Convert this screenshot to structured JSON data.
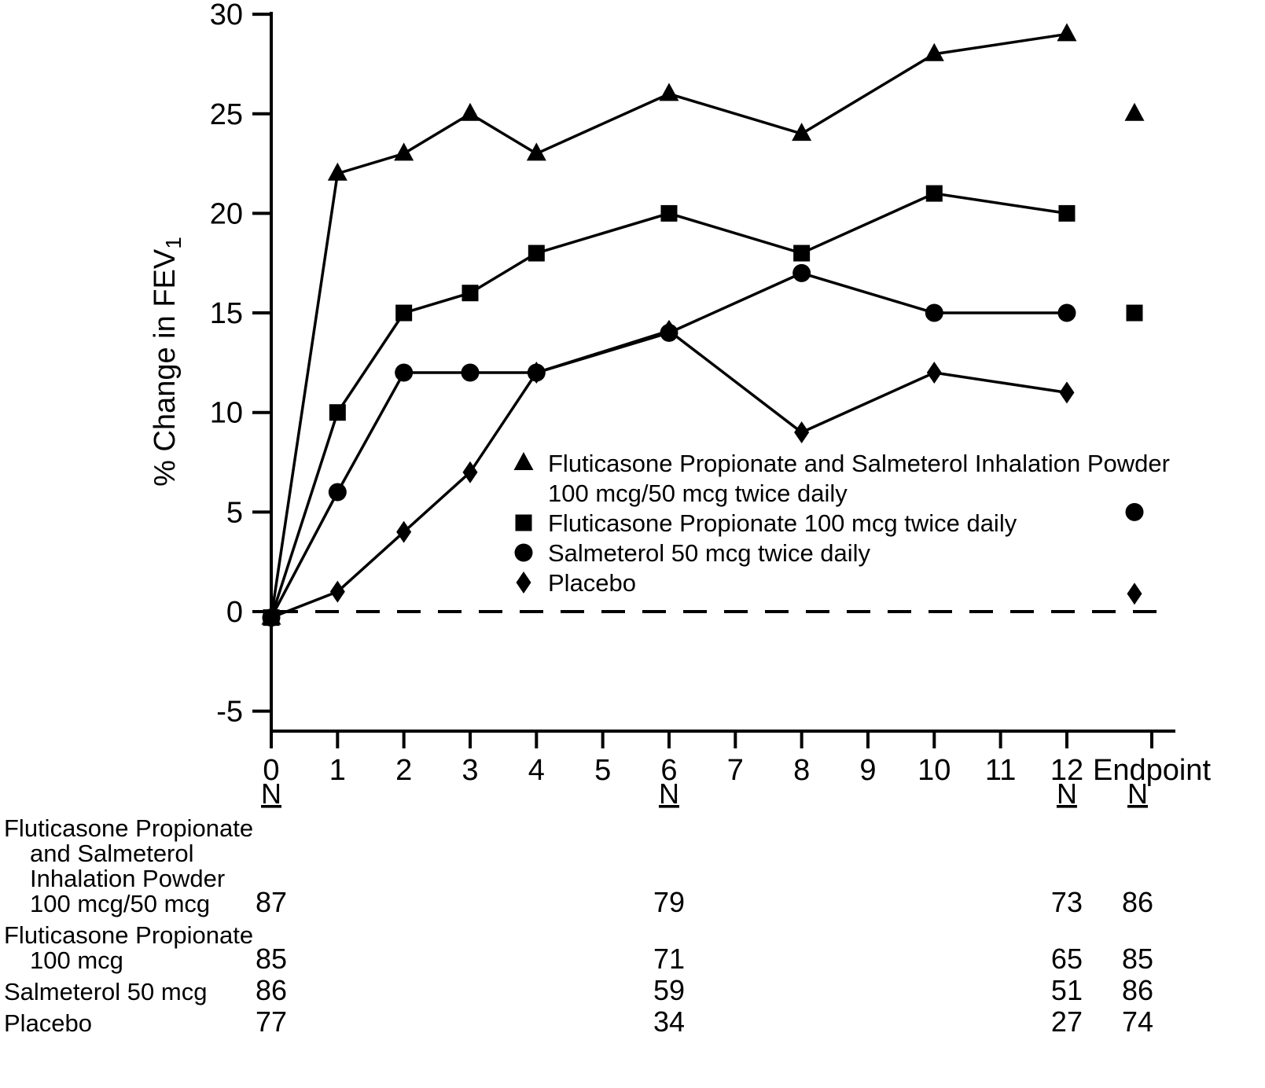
{
  "colors": {
    "ink": "#000000",
    "background": "#ffffff"
  },
  "chart_data": {
    "type": "line",
    "title": "",
    "ylabel": "% Change in FEV",
    "ylabel_subscript": "1",
    "xlabel": "",
    "ylim": [
      -5,
      30
    ],
    "yticks": [
      -5,
      0,
      5,
      10,
      15,
      20,
      25,
      30
    ],
    "xticks": [
      "0",
      "1",
      "2",
      "3",
      "4",
      "5",
      "6",
      "7",
      "8",
      "9",
      "10",
      "11",
      "12",
      "Endpoint"
    ],
    "baseline_y": 0,
    "baseline_style": "dashed",
    "grid": "off",
    "series": [
      {
        "name": "Fluticasone Propionate and Salmeterol Inhalation Powder 100 mcg/50 mcg twice daily",
        "marker": "triangle",
        "weeks": [
          0,
          1,
          2,
          3,
          4,
          6,
          8,
          10,
          12
        ],
        "values": [
          -0.3,
          22,
          23,
          25,
          23,
          26,
          24,
          28,
          29
        ],
        "endpoint": 25
      },
      {
        "name": "Fluticasone Propionate 100 mcg twice daily",
        "marker": "square",
        "weeks": [
          0,
          1,
          2,
          3,
          4,
          6,
          8,
          10,
          12
        ],
        "values": [
          -0.3,
          10,
          15,
          16,
          18,
          20,
          18,
          21,
          20
        ],
        "endpoint": 15
      },
      {
        "name": "Salmeterol 50 mcg twice daily",
        "marker": "circle",
        "weeks": [
          0,
          1,
          2,
          3,
          4,
          6,
          8,
          10,
          12
        ],
        "values": [
          -0.3,
          6,
          12,
          12,
          12,
          14,
          17,
          15,
          15
        ],
        "endpoint": 5
      },
      {
        "name": "Placebo",
        "marker": "diamond",
        "weeks": [
          0,
          1,
          2,
          3,
          4,
          6,
          8,
          10,
          12
        ],
        "values": [
          -0.3,
          1,
          4,
          7,
          12,
          14.1,
          9,
          12,
          11
        ],
        "endpoint": 0.9
      }
    ],
    "legend": {
      "position": "inside-center",
      "items": [
        {
          "marker": "triangle",
          "lines": [
            "Fluticasone Propionate and Salmeterol Inhalation Powder",
            "100 mcg/50 mcg twice daily"
          ]
        },
        {
          "marker": "square",
          "lines": [
            "Fluticasone Propionate 100 mcg twice daily"
          ]
        },
        {
          "marker": "circle",
          "lines": [
            "Salmeterol 50 mcg twice daily"
          ]
        },
        {
          "marker": "diamond",
          "lines": [
            "Placebo"
          ]
        }
      ]
    }
  },
  "n_table": {
    "header_label": "N",
    "column_week_labels": [
      "0",
      "6",
      "12",
      "Endpoint"
    ],
    "rows": [
      {
        "label_lines": [
          "Fluticasone Propionate",
          "and Salmeterol",
          "Inhalation Powder",
          "100 mcg/50 mcg"
        ],
        "values": [
          "87",
          "79",
          "73",
          "86"
        ]
      },
      {
        "label_lines": [
          "Fluticasone Propionate",
          "100 mcg"
        ],
        "values": [
          "85",
          "71",
          "65",
          "85"
        ]
      },
      {
        "label_lines": [
          "Salmeterol 50 mcg"
        ],
        "values": [
          "86",
          "59",
          "51",
          "86"
        ]
      },
      {
        "label_lines": [
          "Placebo"
        ],
        "values": [
          "77",
          "34",
          "27",
          "74"
        ]
      }
    ]
  }
}
